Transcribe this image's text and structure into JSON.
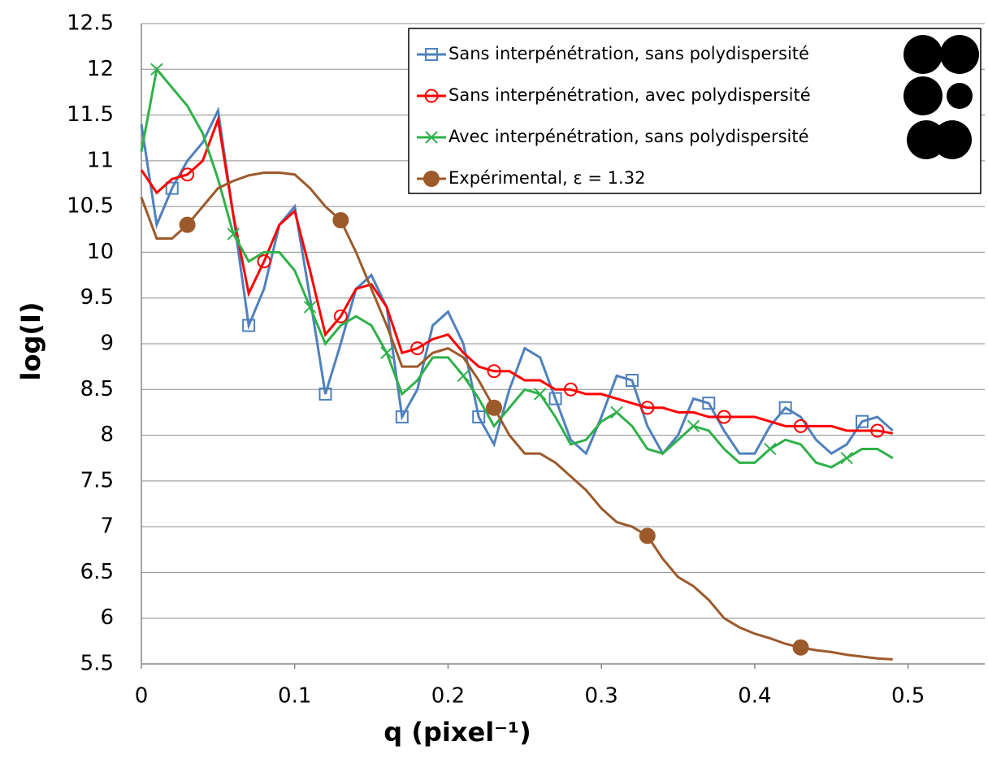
{
  "chart_data": {
    "type": "line",
    "x_label": "q (pixel⁻¹)",
    "y_label": "log(I)",
    "x": [
      0,
      0.01,
      0.02,
      0.03,
      0.04,
      0.05,
      0.06,
      0.07,
      0.08,
      0.09,
      0.1,
      0.11,
      0.12,
      0.13,
      0.14,
      0.15,
      0.16,
      0.17,
      0.18,
      0.19,
      0.2,
      0.21,
      0.22,
      0.23,
      0.24,
      0.25,
      0.26,
      0.27,
      0.28,
      0.29,
      0.3,
      0.31,
      0.32,
      0.33,
      0.34,
      0.35,
      0.36,
      0.37,
      0.38,
      0.39,
      0.4,
      0.41,
      0.42,
      0.43,
      0.44,
      0.45,
      0.46,
      0.47,
      0.48,
      0.49
    ],
    "series": [
      {
        "name": "Sans interpénétration,  sans polydispersité",
        "color": "#4f81bd",
        "marker": "square",
        "values": [
          11.4,
          10.3,
          10.7,
          11.0,
          11.2,
          11.55,
          10.4,
          9.2,
          9.6,
          10.3,
          10.5,
          9.5,
          8.45,
          9.0,
          9.6,
          9.75,
          9.4,
          8.2,
          8.5,
          9.2,
          9.35,
          9.0,
          8.2,
          7.9,
          8.5,
          8.95,
          8.85,
          8.4,
          7.95,
          7.8,
          8.2,
          8.65,
          8.6,
          8.1,
          7.8,
          8.0,
          8.4,
          8.35,
          8.05,
          7.8,
          7.8,
          8.1,
          8.3,
          8.2,
          7.95,
          7.8,
          7.9,
          8.15,
          8.2,
          8.05
        ]
      },
      {
        "name": "Sans interpénétration,  avec polydispersité",
        "color": "#ff0000",
        "marker": "circle",
        "values": [
          10.9,
          10.65,
          10.8,
          10.85,
          11.0,
          11.45,
          10.4,
          9.55,
          9.9,
          10.3,
          10.45,
          9.8,
          9.1,
          9.3,
          9.6,
          9.65,
          9.4,
          8.9,
          8.95,
          9.05,
          9.1,
          8.9,
          8.75,
          8.7,
          8.7,
          8.6,
          8.6,
          8.5,
          8.5,
          8.45,
          8.45,
          8.4,
          8.35,
          8.3,
          8.3,
          8.25,
          8.25,
          8.2,
          8.2,
          8.2,
          8.2,
          8.15,
          8.1,
          8.1,
          8.1,
          8.1,
          8.05,
          8.05,
          8.05,
          8.02
        ]
      },
      {
        "name": "Avec interpénétration, sans polydispersité",
        "color": "#2fb14a",
        "marker": "x",
        "values": [
          11.1,
          12.0,
          11.8,
          11.6,
          11.3,
          10.8,
          10.2,
          9.9,
          10.0,
          10.0,
          9.8,
          9.4,
          9.0,
          9.2,
          9.3,
          9.2,
          8.9,
          8.45,
          8.6,
          8.85,
          8.85,
          8.65,
          8.4,
          8.1,
          8.3,
          8.5,
          8.45,
          8.2,
          7.9,
          7.95,
          8.15,
          8.25,
          8.1,
          7.85,
          7.8,
          7.95,
          8.1,
          8.05,
          7.85,
          7.7,
          7.7,
          7.85,
          7.95,
          7.9,
          7.7,
          7.65,
          7.75,
          7.85,
          7.85,
          7.75
        ]
      },
      {
        "name": "Expérimental, ε = 1.32",
        "color": "#9c5a2b",
        "marker": "dot",
        "values": [
          10.6,
          10.15,
          10.15,
          10.3,
          10.5,
          10.7,
          10.78,
          10.84,
          10.87,
          10.87,
          10.85,
          10.7,
          10.5,
          10.35,
          10.0,
          9.6,
          9.2,
          8.75,
          8.75,
          8.9,
          8.95,
          8.85,
          8.6,
          8.3,
          8.0,
          7.8,
          7.8,
          7.7,
          7.55,
          7.4,
          7.2,
          7.05,
          7.0,
          6.9,
          6.65,
          6.45,
          6.35,
          6.2,
          6.0,
          5.9,
          5.83,
          5.78,
          5.72,
          5.68,
          5.65,
          5.63,
          5.6,
          5.58,
          5.56,
          5.55
        ]
      }
    ],
    "xlim": [
      0,
      0.55
    ],
    "xticks": [
      0,
      0.1,
      0.2,
      0.3,
      0.4,
      0.5
    ],
    "ylim": [
      5.5,
      12.5
    ],
    "yticks": [
      5.5,
      6,
      6.5,
      7,
      7.5,
      8,
      8.5,
      9,
      9.5,
      10,
      10.5,
      11,
      11.5,
      12,
      12.5
    ],
    "grid": true,
    "legend": "upper right"
  }
}
